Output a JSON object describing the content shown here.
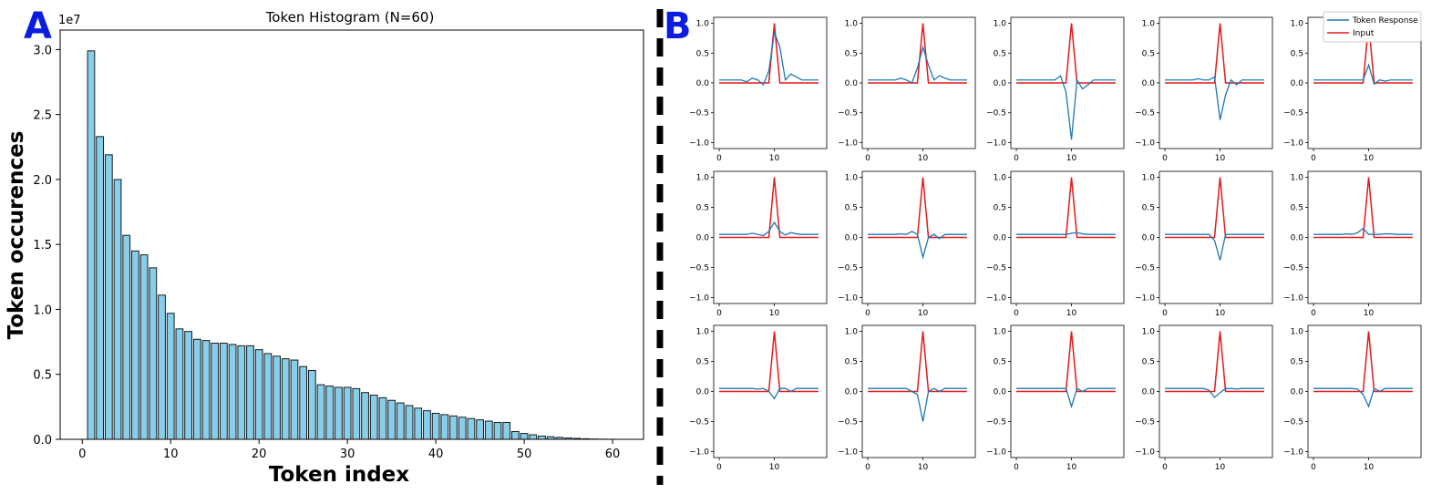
{
  "panels": {
    "a_label": "A",
    "b_label": "B"
  },
  "chart_data": [
    {
      "type": "bar",
      "title": "Token Histogram (N=60)",
      "xlabel": "Token index",
      "ylabel": "Token occurences",
      "y_multiplier_label": "1e7",
      "x": [
        1,
        2,
        3,
        4,
        5,
        6,
        7,
        8,
        9,
        10,
        11,
        12,
        13,
        14,
        15,
        16,
        17,
        18,
        19,
        20,
        21,
        22,
        23,
        24,
        25,
        26,
        27,
        28,
        29,
        30,
        31,
        32,
        33,
        34,
        35,
        36,
        37,
        38,
        39,
        40,
        41,
        42,
        43,
        44,
        45,
        46,
        47,
        48,
        49,
        50,
        51,
        52,
        53,
        54,
        55,
        56,
        57,
        58,
        59,
        60
      ],
      "values": [
        29900000,
        23300000,
        21900000,
        20000000,
        15700000,
        14500000,
        14200000,
        13200000,
        11100000,
        9700000,
        8500000,
        8300000,
        7700000,
        7600000,
        7400000,
        7400000,
        7300000,
        7200000,
        7200000,
        6900000,
        6600000,
        6400000,
        6200000,
        6100000,
        5600000,
        5300000,
        4200000,
        4100000,
        4000000,
        4000000,
        3900000,
        3600000,
        3400000,
        3200000,
        3000000,
        2800000,
        2600000,
        2400000,
        2200000,
        2000000,
        1900000,
        1800000,
        1700000,
        1600000,
        1500000,
        1400000,
        1300000,
        1300000,
        600000,
        450000,
        350000,
        250000,
        200000,
        150000,
        100000,
        70000,
        40000,
        20000,
        10000,
        5000
      ],
      "xlim": [
        -2.5,
        63.5
      ],
      "ylim": [
        0,
        31500000
      ],
      "x_ticks": [
        0,
        10,
        20,
        30,
        40,
        50,
        60
      ],
      "y_ticks": [
        0,
        5000000,
        10000000,
        15000000,
        20000000,
        25000000,
        30000000
      ],
      "y_tick_labels": [
        "0.0",
        "0.5",
        "1.0",
        "1.5",
        "2.0",
        "2.5",
        "3.0"
      ],
      "bar_color": "#87ceeb",
      "edge_color": "#1a1a1a"
    },
    {
      "type": "line",
      "layout": "3x5 grid of small multiples",
      "x": [
        0,
        1,
        2,
        3,
        4,
        5,
        6,
        7,
        8,
        9,
        10,
        11,
        12,
        13,
        14,
        15,
        16,
        17,
        18
      ],
      "xlim": [
        -1,
        19.5
      ],
      "ylim": [
        -1.1,
        1.1
      ],
      "x_ticks": [
        0,
        10
      ],
      "x_tick_labels": [
        "0",
        "10"
      ],
      "y_ticks": [
        1.0,
        0.5,
        0.0,
        -0.5,
        -1.0
      ],
      "y_tick_labels": [
        "1.0",
        "0.5",
        "0.0",
        "−0.5",
        "−1.0"
      ],
      "legend": {
        "position": "upper-right",
        "entries": [
          "Token Response",
          "Input"
        ]
      },
      "colors": {
        "response": "#1f77b4",
        "input": "#e41a1c"
      },
      "input_values": [
        0,
        0,
        0,
        0,
        0,
        0,
        0,
        0,
        0,
        0,
        1,
        0,
        0,
        0,
        0,
        0,
        0,
        0,
        0
      ],
      "responses": [
        [
          0.05,
          0.05,
          0.05,
          0.05,
          0.05,
          0.02,
          0.08,
          0.05,
          -0.03,
          0.2,
          0.85,
          0.6,
          0.05,
          0.15,
          0.1,
          0.05,
          0.05,
          0.05,
          0.05
        ],
        [
          0.05,
          0.05,
          0.05,
          0.05,
          0.05,
          0.05,
          0.08,
          0.05,
          0.0,
          0.25,
          0.6,
          0.3,
          0.05,
          0.12,
          0.08,
          0.05,
          0.05,
          0.05,
          0.05
        ],
        [
          0.05,
          0.05,
          0.05,
          0.05,
          0.05,
          0.05,
          0.05,
          0.05,
          0.12,
          -0.15,
          -0.95,
          0.05,
          -0.1,
          -0.03,
          0.05,
          0.05,
          0.05,
          0.05,
          0.05
        ],
        [
          0.05,
          0.05,
          0.05,
          0.05,
          0.05,
          0.05,
          0.07,
          0.05,
          0.05,
          0.1,
          -0.62,
          -0.2,
          0.05,
          -0.03,
          0.05,
          0.05,
          0.05,
          0.05,
          0.05
        ],
        [
          0.05,
          0.05,
          0.05,
          0.05,
          0.05,
          0.05,
          0.05,
          0.05,
          0.05,
          0.05,
          0.3,
          -0.02,
          0.05,
          0.03,
          0.05,
          0.05,
          0.05,
          0.05,
          0.05
        ],
        [
          0.05,
          0.05,
          0.05,
          0.05,
          0.05,
          0.05,
          0.07,
          0.05,
          0.03,
          0.1,
          0.25,
          0.1,
          0.04,
          0.08,
          0.06,
          0.05,
          0.05,
          0.05,
          0.05
        ],
        [
          0.05,
          0.05,
          0.05,
          0.05,
          0.05,
          0.05,
          0.06,
          0.05,
          0.1,
          0.05,
          -0.33,
          0.0,
          0.05,
          -0.02,
          0.05,
          0.05,
          0.05,
          0.05,
          0.05
        ],
        [
          0.05,
          0.05,
          0.05,
          0.05,
          0.05,
          0.05,
          0.05,
          0.05,
          0.05,
          0.05,
          0.07,
          0.08,
          0.06,
          0.05,
          0.05,
          0.05,
          0.05,
          0.05,
          0.05
        ],
        [
          0.05,
          0.05,
          0.05,
          0.05,
          0.05,
          0.05,
          0.05,
          0.05,
          0.05,
          -0.05,
          -0.38,
          0.05,
          0.05,
          0.05,
          0.05,
          0.05,
          0.05,
          0.05,
          0.05
        ],
        [
          0.05,
          0.05,
          0.05,
          0.05,
          0.05,
          0.05,
          0.06,
          0.05,
          0.08,
          0.15,
          0.05,
          0.05,
          0.05,
          0.06,
          0.06,
          0.05,
          0.05,
          0.05,
          0.05
        ],
        [
          0.05,
          0.05,
          0.05,
          0.05,
          0.05,
          0.05,
          0.05,
          0.04,
          0.05,
          0.0,
          -0.12,
          0.05,
          0.05,
          0.0,
          0.05,
          0.05,
          0.05,
          0.05,
          0.05
        ],
        [
          0.05,
          0.05,
          0.05,
          0.05,
          0.05,
          0.05,
          0.05,
          0.05,
          0.0,
          -0.05,
          -0.5,
          0.0,
          0.05,
          0.0,
          0.05,
          0.05,
          0.05,
          0.05,
          0.05
        ],
        [
          0.05,
          0.05,
          0.05,
          0.05,
          0.05,
          0.05,
          0.05,
          0.05,
          0.05,
          0.05,
          -0.25,
          0.05,
          0.0,
          0.05,
          0.05,
          0.05,
          0.05,
          0.05,
          0.05
        ],
        [
          0.05,
          0.05,
          0.05,
          0.05,
          0.05,
          0.05,
          0.05,
          0.05,
          0.02,
          -0.1,
          -0.02,
          0.05,
          0.05,
          0.04,
          0.05,
          0.05,
          0.05,
          0.05,
          0.05
        ],
        [
          0.05,
          0.05,
          0.05,
          0.05,
          0.05,
          0.05,
          0.05,
          0.05,
          0.04,
          -0.05,
          -0.25,
          0.05,
          0.0,
          0.05,
          0.05,
          0.05,
          0.05,
          0.05,
          0.05
        ]
      ]
    }
  ]
}
